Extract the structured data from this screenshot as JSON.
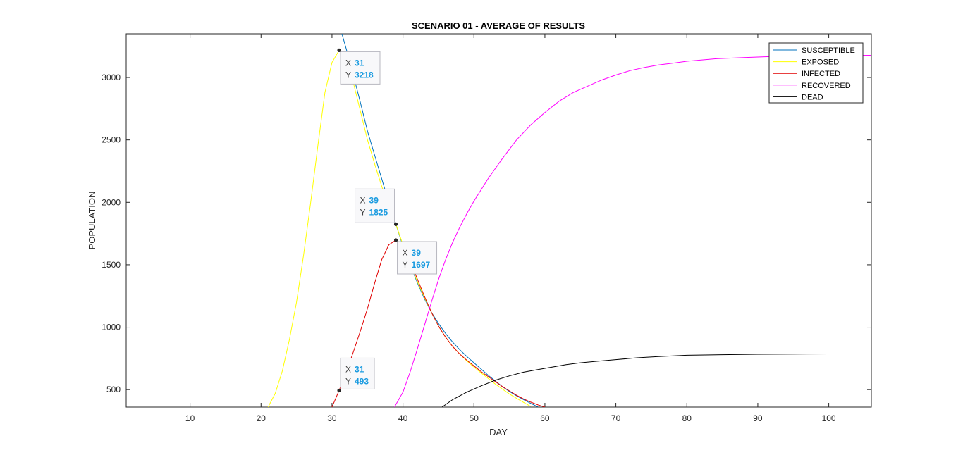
{
  "chart_data": {
    "type": "line",
    "title": "SCENARIO 01 - AVERAGE OF RESULTS",
    "xlabel": "DAY",
    "ylabel": "POPULATION",
    "xlim": [
      1,
      106
    ],
    "ylim": [
      360,
      3350
    ],
    "x_ticks": [
      10,
      20,
      30,
      40,
      50,
      60,
      70,
      80,
      90,
      100
    ],
    "y_ticks": [
      500,
      1000,
      1500,
      2000,
      2500,
      3000
    ],
    "grid": false,
    "legend_position": "top-right",
    "series": [
      {
        "name": "SUSCEPTIBLE",
        "color": "#0072BD",
        "points": [
          [
            31.4,
            3350
          ],
          [
            32,
            3230
          ],
          [
            33,
            3020
          ],
          [
            34,
            2800
          ],
          [
            35,
            2570
          ],
          [
            36,
            2380
          ],
          [
            37,
            2190
          ],
          [
            38,
            2000
          ],
          [
            39,
            1825
          ],
          [
            40,
            1650
          ],
          [
            41,
            1500
          ],
          [
            42,
            1360
          ],
          [
            43,
            1230
          ],
          [
            44,
            1120
          ],
          [
            45,
            1030
          ],
          [
            46,
            950
          ],
          [
            47,
            880
          ],
          [
            48,
            820
          ],
          [
            49,
            765
          ],
          [
            50,
            715
          ],
          [
            51,
            665
          ],
          [
            52,
            615
          ],
          [
            53,
            570
          ],
          [
            54,
            525
          ],
          [
            55,
            485
          ],
          [
            56,
            450
          ],
          [
            57,
            420
          ],
          [
            58,
            390
          ],
          [
            59,
            362
          ]
        ]
      },
      {
        "name": "EXPOSED",
        "color": "#FFFF00",
        "points": [
          [
            21,
            360
          ],
          [
            22,
            470
          ],
          [
            23,
            650
          ],
          [
            24,
            900
          ],
          [
            25,
            1200
          ],
          [
            26,
            1580
          ],
          [
            27,
            2000
          ],
          [
            28,
            2450
          ],
          [
            29,
            2880
          ],
          [
            30,
            3120
          ],
          [
            31,
            3218
          ],
          [
            32,
            3170
          ],
          [
            33,
            2960
          ],
          [
            34,
            2730
          ],
          [
            35,
            2500
          ],
          [
            36,
            2310
          ],
          [
            37,
            2130
          ],
          [
            38,
            1970
          ],
          [
            39,
            1825
          ],
          [
            40,
            1660
          ],
          [
            41,
            1510
          ],
          [
            42,
            1370
          ],
          [
            43,
            1240
          ],
          [
            44,
            1120
          ],
          [
            45,
            1010
          ],
          [
            46,
            920
          ],
          [
            47,
            845
          ],
          [
            48,
            785
          ],
          [
            49,
            730
          ],
          [
            50,
            680
          ],
          [
            51,
            635
          ],
          [
            52,
            590
          ],
          [
            53,
            545
          ],
          [
            54,
            505
          ],
          [
            55,
            465
          ],
          [
            56,
            430
          ],
          [
            57,
            398
          ],
          [
            58,
            365
          ]
        ]
      },
      {
        "name": "INFECTED",
        "color": "#E00000",
        "points": [
          [
            30,
            360
          ],
          [
            31,
            493
          ],
          [
            32,
            640
          ],
          [
            33,
            800
          ],
          [
            34,
            970
          ],
          [
            35,
            1150
          ],
          [
            36,
            1350
          ],
          [
            37,
            1540
          ],
          [
            38,
            1660
          ],
          [
            39,
            1697
          ],
          [
            40,
            1640
          ],
          [
            41,
            1530
          ],
          [
            42,
            1390
          ],
          [
            43,
            1250
          ],
          [
            44,
            1120
          ],
          [
            45,
            1010
          ],
          [
            46,
            920
          ],
          [
            47,
            845
          ],
          [
            48,
            785
          ],
          [
            49,
            735
          ],
          [
            50,
            690
          ],
          [
            51,
            645
          ],
          [
            52,
            605
          ],
          [
            53,
            565
          ],
          [
            54,
            525
          ],
          [
            55,
            490
          ],
          [
            56,
            455
          ],
          [
            57,
            425
          ],
          [
            58,
            400
          ],
          [
            59,
            378
          ],
          [
            60,
            360
          ]
        ]
      },
      {
        "name": "RECOVERED",
        "color": "#FF00FF",
        "points": [
          [
            38.8,
            360
          ],
          [
            40,
            480
          ],
          [
            41,
            640
          ],
          [
            42,
            820
          ],
          [
            43,
            1010
          ],
          [
            44,
            1200
          ],
          [
            45,
            1380
          ],
          [
            46,
            1540
          ],
          [
            47,
            1680
          ],
          [
            48,
            1800
          ],
          [
            49,
            1910
          ],
          [
            50,
            2010
          ],
          [
            52,
            2190
          ],
          [
            54,
            2350
          ],
          [
            56,
            2500
          ],
          [
            58,
            2620
          ],
          [
            60,
            2720
          ],
          [
            62,
            2810
          ],
          [
            64,
            2880
          ],
          [
            66,
            2930
          ],
          [
            68,
            2980
          ],
          [
            70,
            3020
          ],
          [
            72,
            3055
          ],
          [
            74,
            3080
          ],
          [
            76,
            3100
          ],
          [
            78,
            3115
          ],
          [
            80,
            3130
          ],
          [
            84,
            3150
          ],
          [
            88,
            3160
          ],
          [
            92,
            3168
          ],
          [
            96,
            3172
          ],
          [
            100,
            3175
          ],
          [
            106,
            3178
          ]
        ]
      },
      {
        "name": "DEAD",
        "color": "#000000",
        "points": [
          [
            45.5,
            360
          ],
          [
            47,
            420
          ],
          [
            49,
            480
          ],
          [
            51,
            530
          ],
          [
            53,
            575
          ],
          [
            55,
            610
          ],
          [
            57,
            640
          ],
          [
            59,
            660
          ],
          [
            61,
            680
          ],
          [
            63,
            700
          ],
          [
            65,
            715
          ],
          [
            67,
            725
          ],
          [
            70,
            740
          ],
          [
            73,
            755
          ],
          [
            76,
            765
          ],
          [
            80,
            775
          ],
          [
            85,
            780
          ],
          [
            90,
            783
          ],
          [
            95,
            785
          ],
          [
            100,
            786
          ],
          [
            106,
            786
          ]
        ]
      }
    ],
    "annotations": [
      {
        "series": "EXPOSED",
        "x": 31,
        "y": 3218,
        "x_label": "X",
        "y_label": "Y",
        "x_value": "31",
        "y_value": "3218"
      },
      {
        "series": "EXPOSED",
        "x": 39,
        "y": 1825,
        "x_label": "X",
        "y_label": "Y",
        "x_value": "39",
        "y_value": "1825"
      },
      {
        "series": "INFECTED",
        "x": 39,
        "y": 1697,
        "x_label": "X",
        "y_label": "Y",
        "x_value": "39",
        "y_value": "1697"
      },
      {
        "series": "INFECTED",
        "x": 31,
        "y": 493,
        "x_label": "X",
        "y_label": "Y",
        "x_value": "31",
        "y_value": "493"
      }
    ]
  }
}
